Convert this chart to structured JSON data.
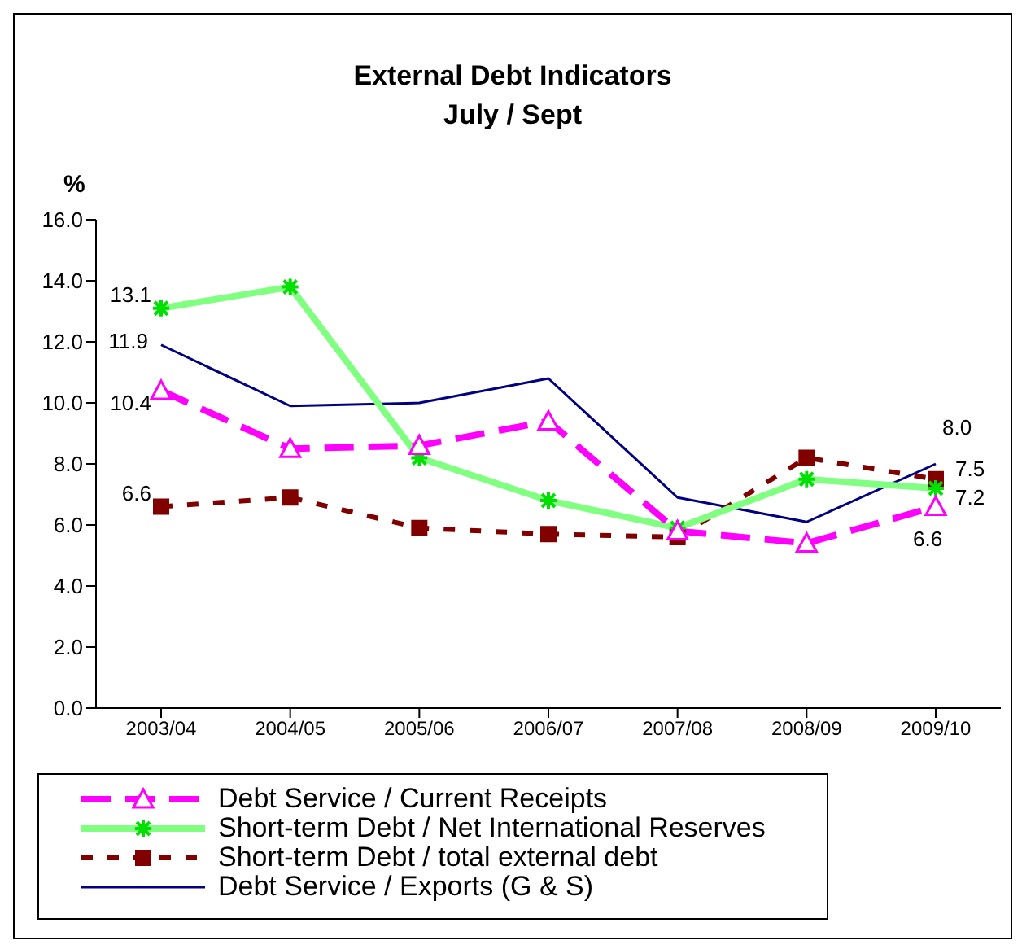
{
  "chart_data": {
    "type": "line",
    "title": "External Debt Indicators",
    "subtitle": "July / Sept",
    "ylabel": "%",
    "categories": [
      "2003/04",
      "2004/05",
      "2005/06",
      "2006/07",
      "2007/08",
      "2008/09",
      "2009/10"
    ],
    "ylim": [
      0,
      16
    ],
    "yticks": [
      {
        "value": 0,
        "label": "0.0"
      },
      {
        "value": 2,
        "label": "2.0"
      },
      {
        "value": 4,
        "label": "4.0"
      },
      {
        "value": 6,
        "label": "6.0"
      },
      {
        "value": 8,
        "label": "8.0"
      },
      {
        "value": 10,
        "label": "10.0"
      },
      {
        "value": 12,
        "label": "12.0"
      },
      {
        "value": 14,
        "label": "14.0"
      },
      {
        "value": 16,
        "label": "16.0"
      }
    ],
    "grid": false,
    "legend": "bottom",
    "series": [
      {
        "name": "Debt Service / Current Receipts",
        "color": "#ff00ff",
        "marker": "triangle",
        "line_style": "dashed",
        "values": [
          10.4,
          8.5,
          8.6,
          9.4,
          5.8,
          5.4,
          6.6
        ],
        "value_labels": [
          "10.4",
          null,
          null,
          null,
          null,
          null,
          "6.6"
        ]
      },
      {
        "name": "Short-term Debt / Net International Reserves",
        "color": "#80ff80",
        "marker": "cross",
        "line_style": "solid",
        "values": [
          13.1,
          13.8,
          8.2,
          6.8,
          5.9,
          7.5,
          7.2
        ],
        "value_labels": [
          "13.1",
          null,
          null,
          null,
          null,
          null,
          "7.2"
        ]
      },
      {
        "name": "Short-term Debt / total external debt",
        "color": "#800000",
        "marker": "square",
        "line_style": "dotted",
        "values": [
          6.6,
          6.9,
          5.9,
          5.7,
          5.6,
          8.2,
          7.5
        ],
        "value_labels": [
          "6.6",
          null,
          null,
          null,
          null,
          null,
          "7.5"
        ]
      },
      {
        "name": "Debt Service / Exports (G & S)",
        "color": "#000080",
        "marker": "none",
        "line_style": "solid",
        "values": [
          11.9,
          9.9,
          10.0,
          10.8,
          6.9,
          6.1,
          8.0
        ],
        "value_labels": [
          "11.9",
          null,
          null,
          null,
          null,
          null,
          "8.0"
        ]
      }
    ]
  }
}
